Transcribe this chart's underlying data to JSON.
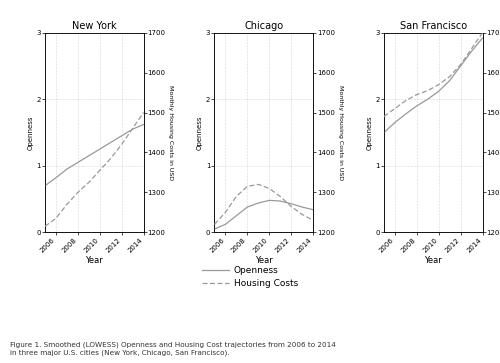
{
  "cities": [
    "New York",
    "Chicago",
    "San Francisco"
  ],
  "years": [
    2005,
    2006,
    2007,
    2008,
    2009,
    2010,
    2011,
    2012,
    2013,
    2014
  ],
  "openness": {
    "New York": [
      0.7,
      0.82,
      0.95,
      1.05,
      1.15,
      1.25,
      1.35,
      1.45,
      1.55,
      1.62
    ],
    "Chicago": [
      0.05,
      0.12,
      0.25,
      0.38,
      0.44,
      0.48,
      0.47,
      0.43,
      0.38,
      0.34
    ],
    "San Francisco": [
      1.5,
      1.65,
      1.78,
      1.9,
      2.0,
      2.12,
      2.28,
      2.5,
      2.72,
      2.92
    ]
  },
  "housing": {
    "New York": [
      1215,
      1235,
      1270,
      1300,
      1325,
      1355,
      1385,
      1420,
      1460,
      1500
    ],
    "Chicago": [
      1220,
      1250,
      1290,
      1315,
      1320,
      1310,
      1290,
      1265,
      1245,
      1230
    ],
    "San Francisco": [
      1490,
      1510,
      1530,
      1545,
      1555,
      1570,
      1590,
      1620,
      1660,
      1700
    ]
  },
  "ylim_openness": [
    0,
    3
  ],
  "ylim_housing": [
    1200,
    1700
  ],
  "yticks_openness": [
    0,
    1,
    2,
    3
  ],
  "yticks_housing": [
    1200,
    1300,
    1400,
    1500,
    1600,
    1700
  ],
  "xlabel": "Year",
  "ylabel_left": "Openness",
  "ylabel_right": "Monthly Housing Costs in USD",
  "xticks": [
    2006,
    2008,
    2010,
    2012,
    2014
  ],
  "line_color": "#999999",
  "legend_labels": [
    "Openness",
    "Housing Costs"
  ],
  "caption": "Figure 1. Smoothed (LOWESS) Openness and Housing Cost trajectories from 2006 to 2014\nin three major U.S. cities (New York, Chicago, San Francisco)."
}
